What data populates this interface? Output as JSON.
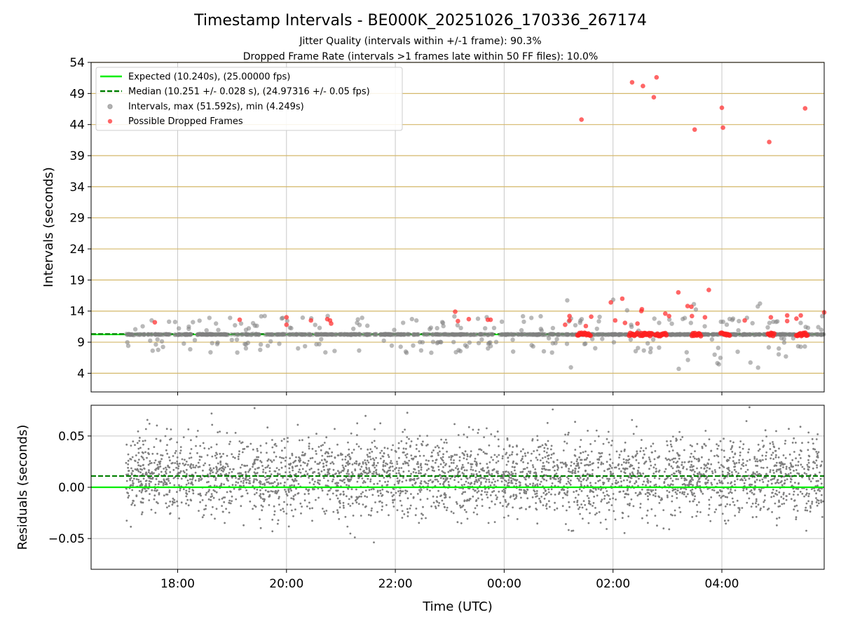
{
  "chart_data": {
    "type": "scatter",
    "title": "Timestamp Intervals - BE000K_20251026_170336_267174",
    "subtitle_1": "Jitter Quality (intervals within +/-1 frame): 90.3%",
    "subtitle_2": "Dropped Frame Rate (intervals >1 frames late within 50 FF files): 10.0%",
    "xlabel": "Time (UTC)",
    "x_tick_labels": [
      "18:00",
      "20:00",
      "22:00",
      "00:00",
      "02:00",
      "04:00"
    ],
    "x_range_hours": [
      16.41,
      29.88
    ],
    "top_panel": {
      "ylabel": "Intervals (seconds)",
      "ylim": [
        1.0,
        54.0
      ],
      "y_ticks": [
        4,
        9,
        14,
        19,
        24,
        29,
        34,
        39,
        44,
        49,
        54
      ],
      "y_tick_labels": [
        "4",
        "9",
        "14",
        "19",
        "24",
        "29",
        "34",
        "39",
        "44",
        "49",
        "54"
      ],
      "legend_location": "upper left",
      "expected_interval": 10.24,
      "median_interval": 10.251,
      "series": [
        {
          "name": "Expected (10.240s), (25.00000 fps)",
          "style": "line",
          "color": "#00ee00"
        },
        {
          "name": "Median (10.251 +/- 0.028 s), (24.97316 +/- 0.05 fps)",
          "style": "dashed",
          "color": "#007f00"
        },
        {
          "name": "Intervals, max (51.592s), min (4.249s)",
          "style": "points",
          "color": "#808080"
        },
        {
          "name": "Possible Dropped Frames",
          "style": "points",
          "color": "#ff3333"
        }
      ],
      "dropped_frames": [
        [
          17.58,
          12.2
        ],
        [
          19.14,
          12.6
        ],
        [
          20.0,
          13.0
        ],
        [
          20.0,
          11.8
        ],
        [
          20.45,
          12.5
        ],
        [
          20.75,
          12.7
        ],
        [
          20.8,
          12.5
        ],
        [
          20.82,
          12.0
        ],
        [
          23.1,
          13.9
        ],
        [
          23.15,
          12.4
        ],
        [
          23.35,
          12.7
        ],
        [
          23.7,
          12.6
        ],
        [
          23.75,
          12.6
        ],
        [
          25.12,
          11.8
        ],
        [
          25.2,
          13.2
        ],
        [
          25.2,
          12.5
        ],
        [
          25.42,
          44.8
        ],
        [
          25.5,
          11.6
        ],
        [
          25.6,
          13.1
        ],
        [
          25.96,
          15.4
        ],
        [
          26.04,
          12.5
        ],
        [
          26.17,
          16.0
        ],
        [
          26.22,
          12.1
        ],
        [
          26.35,
          50.8
        ],
        [
          26.45,
          12.0
        ],
        [
          26.52,
          14.0
        ],
        [
          26.53,
          14.3
        ],
        [
          26.55,
          50.2
        ],
        [
          26.75,
          48.4
        ],
        [
          26.8,
          51.6
        ],
        [
          26.96,
          13.6
        ],
        [
          27.03,
          13.2
        ],
        [
          27.2,
          17.0
        ],
        [
          27.37,
          14.8
        ],
        [
          27.44,
          14.7
        ],
        [
          27.45,
          13.2
        ],
        [
          27.5,
          43.2
        ],
        [
          27.69,
          13.0
        ],
        [
          27.76,
          17.4
        ],
        [
          28.0,
          46.7
        ],
        [
          28.02,
          43.5
        ],
        [
          28.42,
          12.5
        ],
        [
          28.87,
          41.2
        ],
        [
          28.9,
          13.0
        ],
        [
          29.2,
          13.3
        ],
        [
          29.2,
          12.4
        ],
        [
          29.37,
          12.8
        ],
        [
          29.45,
          13.3
        ],
        [
          29.53,
          46.6
        ],
        [
          29.88,
          13.8
        ]
      ]
    },
    "bottom_panel": {
      "ylabel": "Residuals (seconds)",
      "ylim": [
        -0.08,
        0.08
      ],
      "y_ticks": [
        0.05,
        0.0,
        -0.05
      ],
      "y_tick_labels": [
        "0.05",
        "0.00",
        "−0.05"
      ],
      "expected_residual": 0.0,
      "median_residual": 0.011,
      "point_color": "#7f7f7f",
      "residual_center": 0.01,
      "residual_spread": 0.025
    }
  }
}
